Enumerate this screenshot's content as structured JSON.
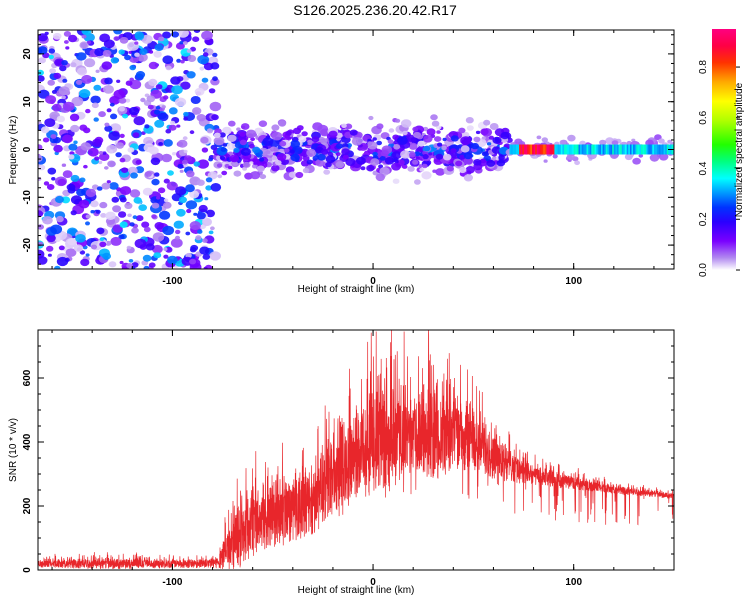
{
  "title": "S126.2025.236.20.42.R17",
  "chart_data": [
    {
      "type": "heatmap",
      "xlabel": "Height of straight line (km)",
      "ylabel": "Frequency (Hz)",
      "xlim": [
        -167,
        150
      ],
      "ylim": [
        -25,
        25
      ],
      "xticks": [
        -100,
        0,
        100
      ],
      "yticks": [
        -20,
        -10,
        0,
        10,
        20
      ],
      "colorbar": {
        "label": "Normalized spectral amplitude",
        "range": [
          0,
          0.95
        ],
        "ticks": [
          0.0,
          0.2,
          0.4,
          0.6,
          0.8
        ],
        "tick_labels": [
          "0.0",
          "0.2",
          "0.4",
          "0.6",
          "0.8"
        ]
      },
      "regions": [
        {
          "x": [
            -167,
            -78
          ],
          "description": "broadband noise, diffuse",
          "amplitude_max": 0.35
        },
        {
          "x": [
            -78,
            68
          ],
          "center_hz": 0,
          "spread_hz": 8,
          "amplitude_max": 0.3
        },
        {
          "x": [
            68,
            150
          ],
          "center_hz": 0,
          "spread_hz": 1.5,
          "amplitude_max": 0.95,
          "peak_x": [
            72,
            90
          ]
        }
      ]
    },
    {
      "type": "line",
      "xlabel": "Height of straight line (km)",
      "ylabel": "SNR (10 * v/v)",
      "xlim": [
        -167,
        150
      ],
      "ylim": [
        0,
        750
      ],
      "xticks": [
        -100,
        0,
        100
      ],
      "yticks": [
        0,
        200,
        400,
        600
      ],
      "series": [
        {
          "name": "SNR",
          "color": "#e8262b",
          "envelope": {
            "x": [
              -167,
              -130,
              -100,
              -78,
              -70,
              -60,
              -50,
              -40,
              -30,
              -25,
              -20,
              -10,
              0,
              10,
              20,
              30,
              40,
              50,
              60,
              70,
              80,
              100,
              120,
              150
            ],
            "base": [
              18,
              18,
              18,
              20,
              70,
              130,
              155,
              175,
              205,
              230,
              280,
              340,
              375,
              400,
              410,
              420,
              415,
              390,
              350,
              315,
              290,
              270,
              250,
              230
            ],
            "upper": [
              40,
              55,
              45,
              50,
              250,
              330,
              345,
              380,
              415,
              450,
              500,
              650,
              720,
              690,
              640,
              740,
              660,
              560,
              500,
              410,
              350,
              310,
              275,
              250
            ]
          }
        }
      ]
    }
  ]
}
